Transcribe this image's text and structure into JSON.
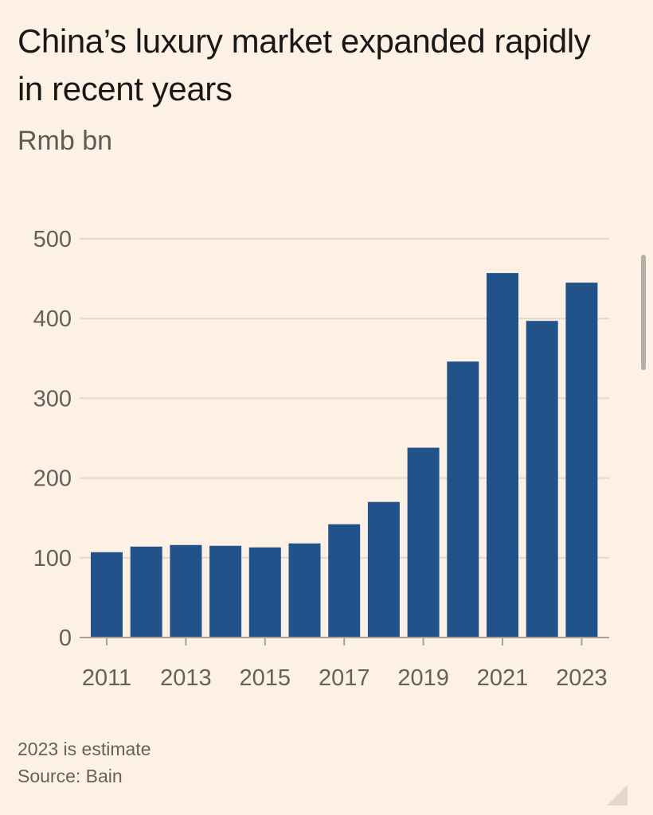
{
  "chart_data": {
    "type": "bar",
    "title": "China’s luxury market expanded rapidly in recent years",
    "subtitle": "Rmb bn",
    "categories": [
      "2011",
      "2012",
      "2013",
      "2014",
      "2015",
      "2016",
      "2017",
      "2018",
      "2019",
      "2020",
      "2021",
      "2022",
      "2023"
    ],
    "series": [
      {
        "values": [
          107,
          114,
          116,
          115,
          113,
          118,
          142,
          170,
          238,
          346,
          457,
          397,
          445
        ]
      }
    ],
    "x_tick_labels": [
      "2011",
      "2013",
      "2015",
      "2017",
      "2019",
      "2021",
      "2023"
    ],
    "y_ticks": [
      0,
      100,
      200,
      300,
      400,
      500
    ],
    "ylim": [
      0,
      500
    ],
    "bar_color": "#215289",
    "grid": true,
    "note": "2023 is estimate",
    "source": "Source: Bain"
  }
}
